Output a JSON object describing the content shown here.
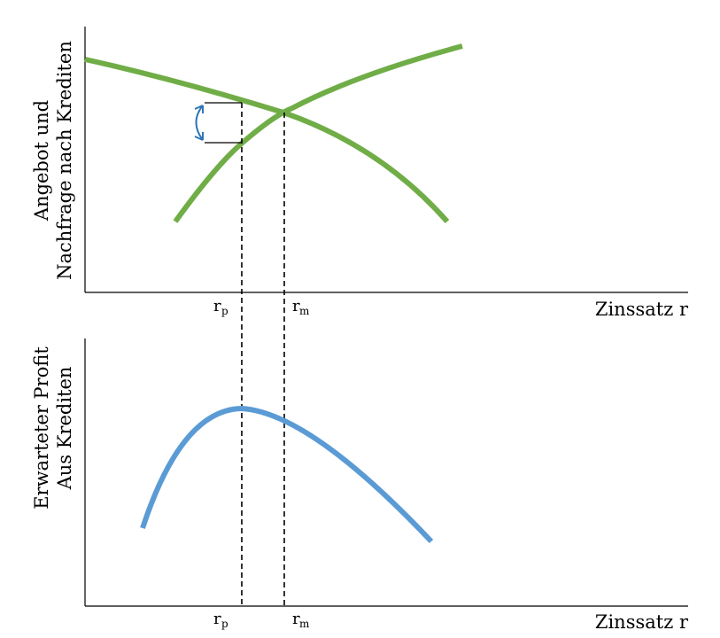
{
  "top_panel": {
    "y_label_line1": "Angebot und",
    "y_label_line2": "Nachfrage nach Krediten",
    "x_label": "Zinssatz r",
    "tick_rp_main": "r",
    "tick_rp_sub": "p",
    "tick_rm_main": "r",
    "tick_rm_sub": "m"
  },
  "bottom_panel": {
    "y_label_line1": "Erwarteter Profit",
    "y_label_line2": "Aus Krediten",
    "x_label": "Zinssatz r",
    "tick_rp_main": "r",
    "tick_rp_sub": "p",
    "tick_rm_main": "r",
    "tick_rm_sub": "m"
  },
  "colors": {
    "supply_demand_curves": "#70ad47",
    "profit_curve": "#5b9bd5",
    "arrow": "#2e75b6"
  }
}
